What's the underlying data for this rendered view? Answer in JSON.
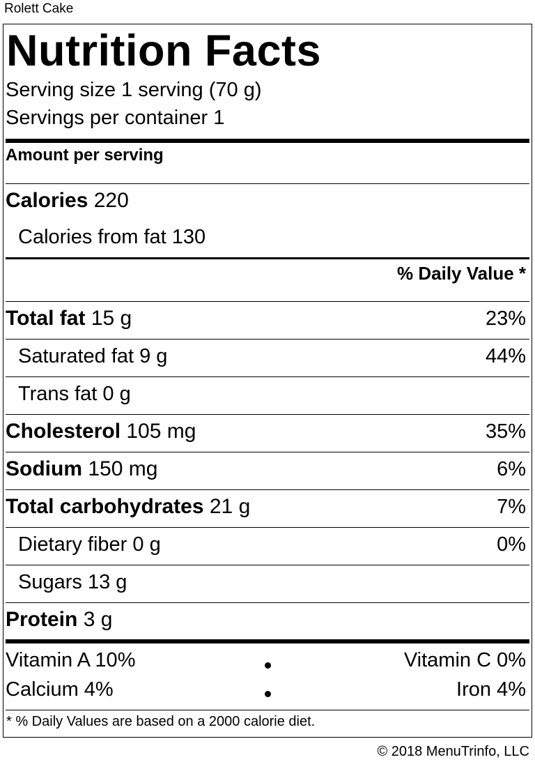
{
  "product_name": "Rolett Cake",
  "label": {
    "title": "Nutrition Facts",
    "serving_size": "Serving size 1 serving (70 g)",
    "servings_per_container": "Servings per container 1",
    "amount_per_serving": "Amount per serving",
    "calories_label": "Calories",
    "calories_value": "220",
    "calories_from_fat": "Calories from fat 130",
    "daily_value_header": "% Daily Value *",
    "nutrients": [
      {
        "name": "Total fat",
        "amount": "15 g",
        "dv": "23%"
      },
      {
        "name": "Saturated fat",
        "amount": "9 g",
        "dv": "44%"
      },
      {
        "name": "Trans fat",
        "amount": "0 g",
        "dv": ""
      },
      {
        "name": "Cholesterol",
        "amount": "105 mg",
        "dv": "35%"
      },
      {
        "name": "Sodium",
        "amount": "150 mg",
        "dv": "6%"
      },
      {
        "name": "Total carbohydrates",
        "amount": "21 g",
        "dv": "7%"
      },
      {
        "name": "Dietary fiber",
        "amount": "0 g",
        "dv": "0%"
      },
      {
        "name": "Sugars",
        "amount": "13 g",
        "dv": ""
      },
      {
        "name": "Protein",
        "amount": "3 g",
        "dv": ""
      }
    ],
    "vitamins": {
      "vitamin_a": "Vitamin A 10%",
      "vitamin_c": "Vitamin C 0%",
      "calcium": "Calcium 4%",
      "iron": "Iron 4%"
    },
    "footnote": "* % Daily Values are based on a 2000 calorie diet."
  },
  "copyright": "© 2018 MenuTrinfo, LLC"
}
